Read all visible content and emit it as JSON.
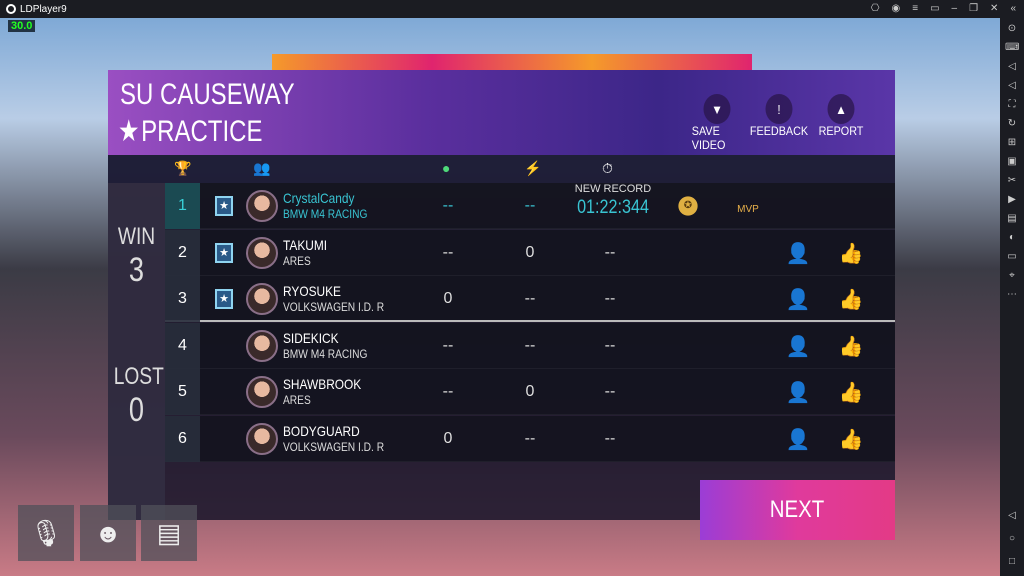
{
  "window": {
    "title": "LDPlayer9",
    "fps": "30.0"
  },
  "header": {
    "track": "SU CAUSEWAY",
    "mode": "PRACTICE",
    "buttons": [
      {
        "label": "SAVE VIDEO",
        "icon": "video-icon"
      },
      {
        "label": "FEEDBACK",
        "icon": "feedback-icon"
      },
      {
        "label": "REPORT",
        "icon": "report-icon"
      }
    ]
  },
  "columns": [
    {
      "icon": "trophy-icon"
    },
    {
      "icon": "players-icon"
    },
    {
      "icon": "nitro-drop-icon",
      "color": "#4fd97a"
    },
    {
      "icon": "energy-icon",
      "color": "#d64fd9"
    },
    {
      "icon": "stopwatch-icon"
    }
  ],
  "summary": {
    "win_label": "WIN",
    "win": "3",
    "lost_label": "LOST",
    "lost": "0"
  },
  "rows": [
    {
      "rank": "1",
      "name": "CrystalCandy",
      "car": "BMW M4 RACING",
      "c1": "--",
      "c2": "--",
      "record_label": "NEW RECORD",
      "time": "01:22:344",
      "medals": [
        "wheel-medal",
        "MVP"
      ]
    },
    {
      "rank": "2",
      "name": "TAKUMI",
      "car": "ARES",
      "c1": "--",
      "c2": "0",
      "time": "--"
    },
    {
      "rank": "3",
      "name": "RYOSUKE",
      "car": "VOLKSWAGEN I.D. R",
      "c1": "0",
      "c2": "--",
      "time": "--"
    },
    {
      "rank": "4",
      "name": "SIDEKICK",
      "car": "BMW M4 RACING",
      "c1": "--",
      "c2": "--",
      "time": "--"
    },
    {
      "rank": "5",
      "name": "SHAWBROOK",
      "car": "ARES",
      "c1": "--",
      "c2": "0",
      "time": "--"
    },
    {
      "rank": "6",
      "name": "BODYGUARD",
      "car": "VOLKSWAGEN I.D. R",
      "c1": "0",
      "c2": "--",
      "time": "--"
    }
  ],
  "next_label": "NEXT",
  "accent": "#39c4d2"
}
